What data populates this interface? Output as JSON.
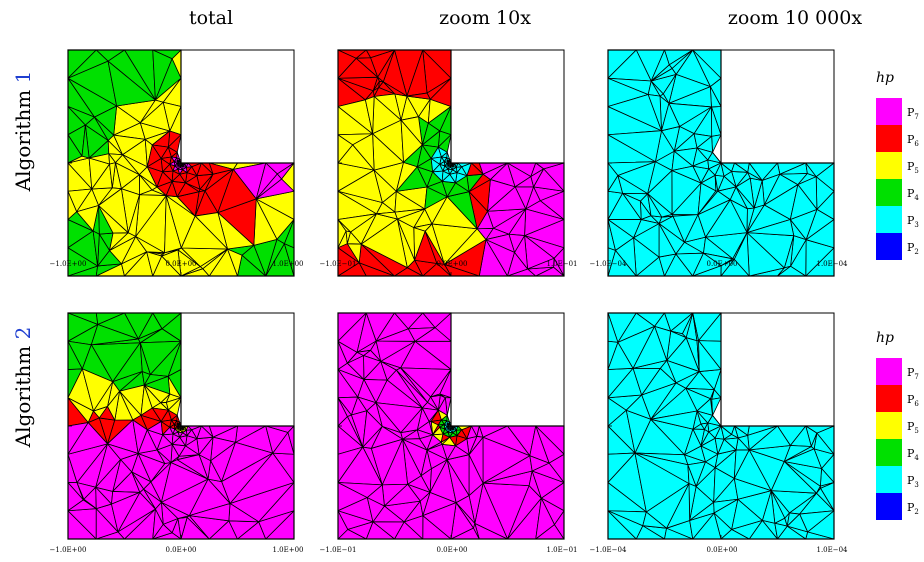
{
  "columns": [
    {
      "title": "total",
      "ticks": [
        "−1.0E+00",
        "0.0E+00",
        "1.0E+00"
      ]
    },
    {
      "title": "zoom 10x",
      "ticks": [
        "−1.0E−01",
        "0.0E+00",
        "1.0E−01"
      ]
    },
    {
      "title": "zoom 10 000x",
      "ticks": [
        "−1.0E−04",
        "0.0E+00",
        "1.0E−04"
      ]
    }
  ],
  "rows": [
    {
      "label": "Algorithm ",
      "number": "1"
    },
    {
      "label": "Algorithm ",
      "number": "2"
    }
  ],
  "legend": {
    "title": "hp",
    "items": [
      {
        "base": "P",
        "sub": "7",
        "color": "#ff00ff"
      },
      {
        "base": "P",
        "sub": "6",
        "color": "#ff0000"
      },
      {
        "base": "P",
        "sub": "5",
        "color": "#ffff00"
      },
      {
        "base": "P",
        "sub": "4",
        "color": "#00e000"
      },
      {
        "base": "P",
        "sub": "3",
        "color": "#00ffff"
      },
      {
        "base": "P",
        "sub": "2",
        "color": "#0000ff"
      }
    ]
  },
  "panels": [
    {
      "row": 0,
      "col": 0,
      "dominant": "P5",
      "regions": [
        "P4",
        "P5",
        "P6",
        "P7"
      ]
    },
    {
      "row": 0,
      "col": 1,
      "dominant": "P5",
      "regions": [
        "P3",
        "P4",
        "P5",
        "P6",
        "P7"
      ]
    },
    {
      "row": 0,
      "col": 2,
      "dominant": "P3",
      "regions": [
        "P3"
      ]
    },
    {
      "row": 1,
      "col": 0,
      "dominant": "P7",
      "regions": [
        "P4",
        "P5",
        "P6",
        "P7"
      ]
    },
    {
      "row": 1,
      "col": 1,
      "dominant": "P7",
      "regions": [
        "P3",
        "P4",
        "P5",
        "P6",
        "P7"
      ]
    },
    {
      "row": 1,
      "col": 2,
      "dominant": "P3",
      "regions": [
        "P3"
      ]
    }
  ]
}
